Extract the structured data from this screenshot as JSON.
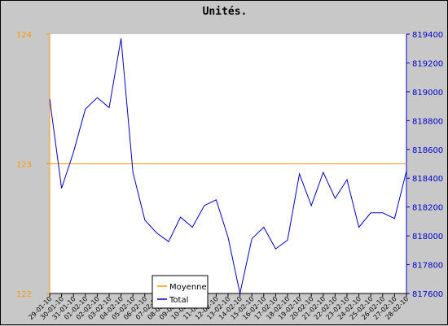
{
  "chart_data": {
    "type": "line",
    "title": "Unités.",
    "x_categories": [
      "29-01-10",
      "30-01-10",
      "31-01-10",
      "01-02-10",
      "02-02-10",
      "03-02-10",
      "04-02-10",
      "05-02-10",
      "06-02-10",
      "07-02-10",
      "08-02-10",
      "09-02-10",
      "10-02-10",
      "11-02-10",
      "12-02-10",
      "13-02-10",
      "14-02-10",
      "15-02-10",
      "16-02-10",
      "17-02-10",
      "18-02-10",
      "19-02-10",
      "20-02-10",
      "21-02-10",
      "22-02-10",
      "23-02-10",
      "24-02-10",
      "25-02-10",
      "26-02-10",
      "27-02-10",
      "28-02-10"
    ],
    "left_axis": {
      "min": 122,
      "max": 124,
      "ticks": [
        "122",
        "123",
        "124"
      ],
      "color": "#ff9900"
    },
    "right_axis": {
      "min": 817600,
      "max": 819400,
      "ticks": [
        "817600",
        "817800",
        "818000",
        "818200",
        "818400",
        "818600",
        "818800",
        "819000",
        "819200",
        "819400"
      ],
      "color": "#0000cc"
    },
    "series": [
      {
        "name": "Moyenne",
        "axis": "left",
        "color": "#ff9900",
        "values": [
          123,
          123,
          123,
          123,
          123,
          123,
          123,
          123,
          123,
          123,
          123,
          123,
          123,
          123,
          123,
          123,
          123,
          123,
          123,
          123,
          123,
          123,
          123,
          123,
          123,
          123,
          123,
          123,
          123,
          123,
          123
        ]
      },
      {
        "name": "Total",
        "axis": "right",
        "color": "#0000cc",
        "values": [
          818950,
          818330,
          818580,
          818880,
          818960,
          818890,
          819370,
          818440,
          818110,
          818020,
          817960,
          818130,
          818060,
          818210,
          818250,
          817990,
          817600,
          817980,
          818060,
          817910,
          817970,
          818430,
          818210,
          818440,
          818260,
          818390,
          818060,
          818160,
          818160,
          818120,
          818450
        ]
      }
    ],
    "grid": false,
    "legend": "bottom-left"
  }
}
